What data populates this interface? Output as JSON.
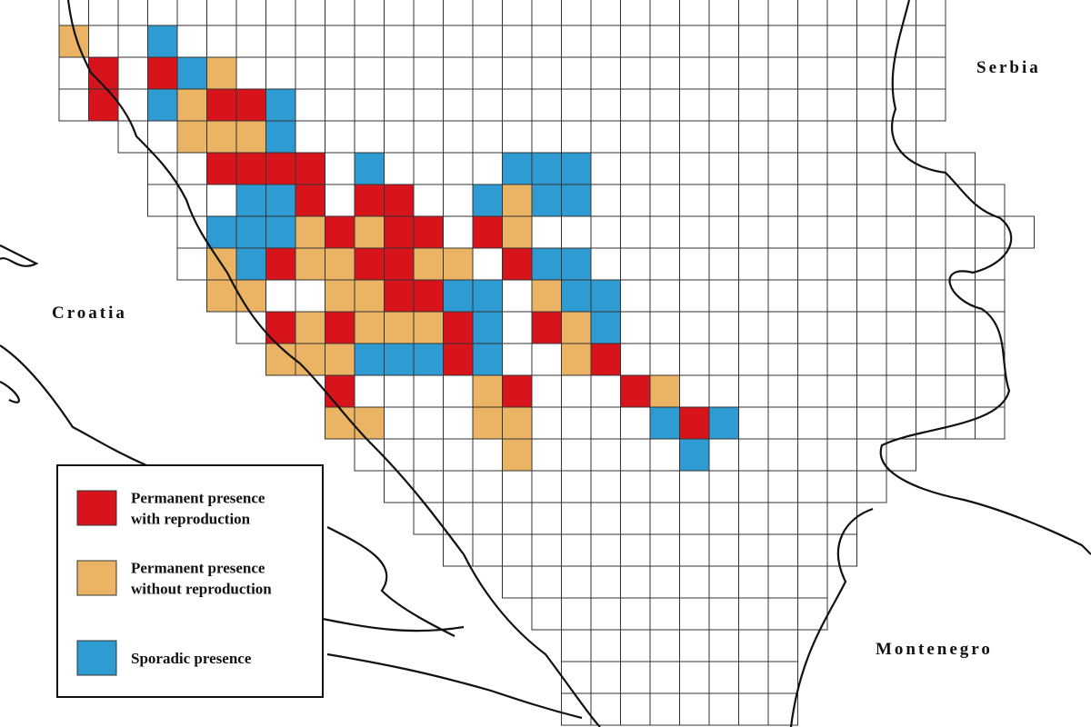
{
  "map": {
    "countries": {
      "serbia": "Serbia",
      "croatia": "Croatia",
      "montenegro": "Montenegro"
    },
    "legend": {
      "items": [
        {
          "lines": [
            "Permanent presence",
            "with reproduction"
          ],
          "color": "#d7141c"
        },
        {
          "lines": [
            "Permanent presence",
            "without reproduction"
          ],
          "color": "#ebb464"
        },
        {
          "lines": [
            "Sporadic presence"
          ],
          "color": "#2f9bd3"
        }
      ]
    }
  }
}
